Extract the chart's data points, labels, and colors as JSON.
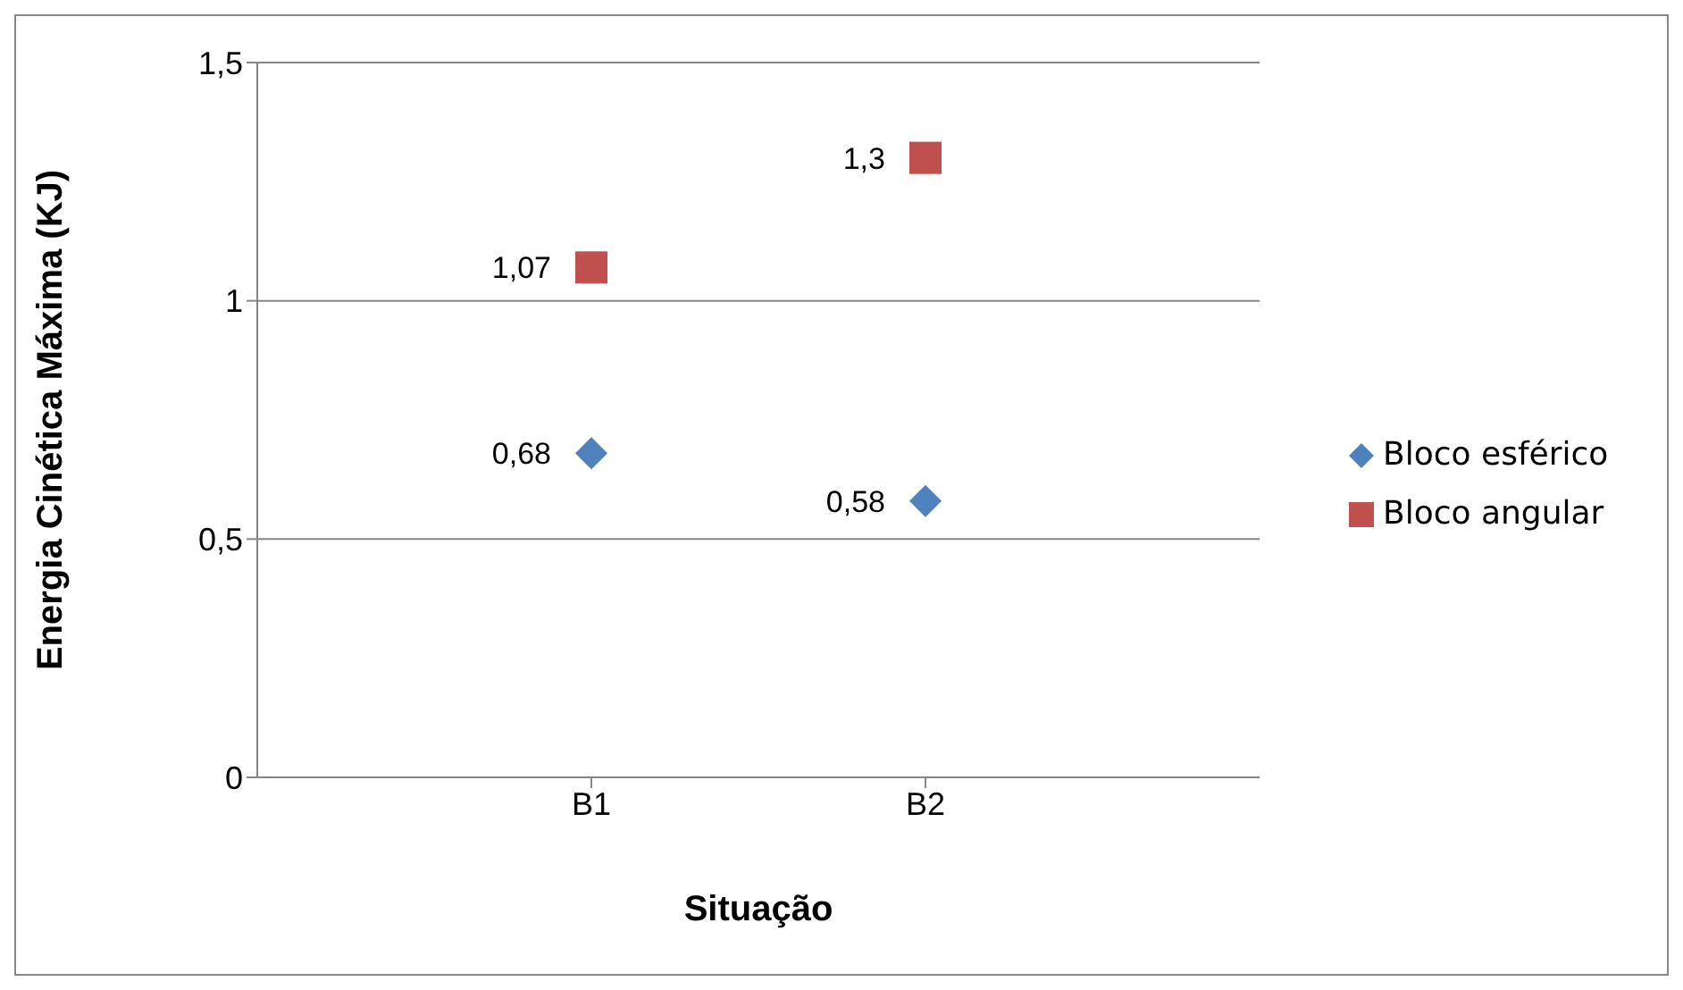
{
  "chart_data": {
    "type": "scatter",
    "xlabel": "Situação",
    "ylabel": "Energia Cinética Máxima (KJ)",
    "categories": [
      "B1",
      "B2"
    ],
    "series": [
      {
        "name": "Bloco esférico",
        "color": "#4f81bd",
        "marker": "diamond",
        "values": [
          0.68,
          0.58
        ],
        "value_labels": [
          "0,68",
          "0,58"
        ]
      },
      {
        "name": "Bloco angular",
        "color": "#c0504d",
        "marker": "square",
        "values": [
          1.07,
          1.3
        ],
        "value_labels": [
          "1,07",
          "1,3"
        ]
      }
    ],
    "ylim": [
      0,
      1.5
    ],
    "yticks": [
      {
        "value": 0,
        "label": "0"
      },
      {
        "value": 0.5,
        "label": "0,5"
      },
      {
        "value": 1,
        "label": "1"
      },
      {
        "value": 1.5,
        "label": "1,5"
      }
    ],
    "grid": "y",
    "legend": "right"
  }
}
